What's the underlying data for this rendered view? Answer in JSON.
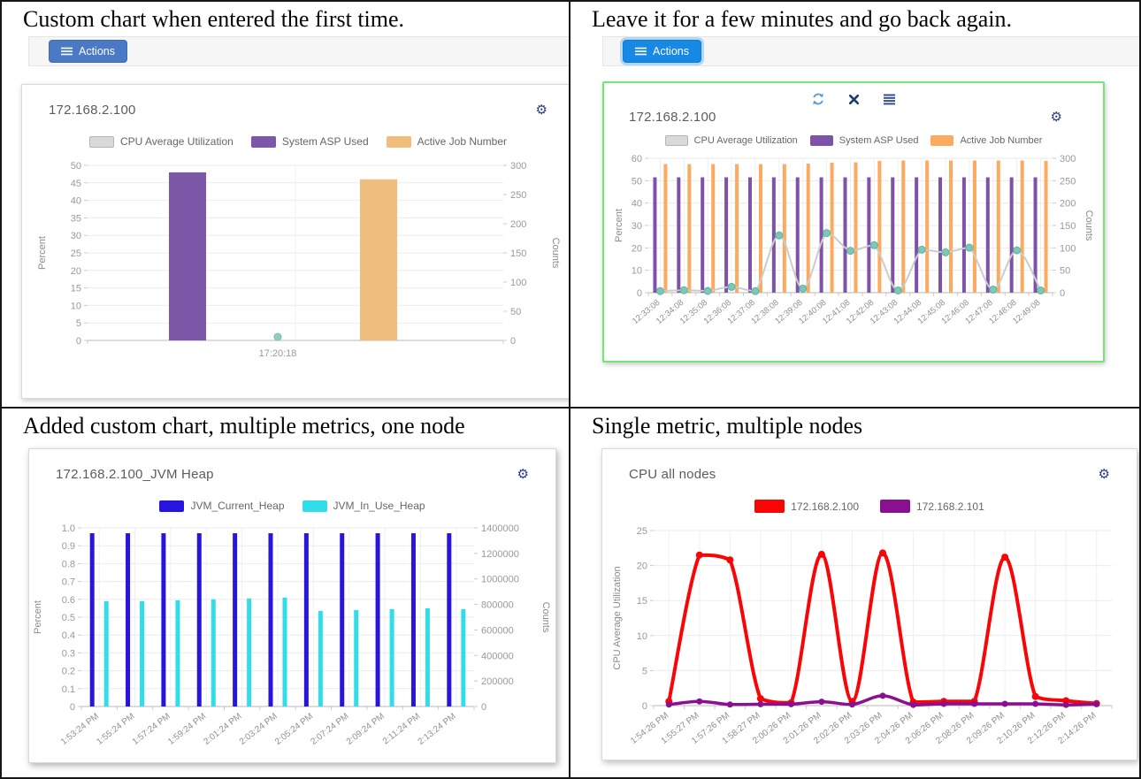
{
  "icons": {
    "gear": "⚙",
    "hamburger": "three-lines",
    "refresh": "circular-arrows",
    "close": "x-cross",
    "list": "stacked-lines"
  },
  "cells": {
    "tl": {
      "caption": "Custom chart when entered the first time.",
      "actions_label": "Actions"
    },
    "tr": {
      "caption": "Leave it for a few minutes and go back again.",
      "actions_label": "Actions"
    },
    "bl": {
      "caption": "Added custom chart, multiple metrics, one node"
    },
    "br": {
      "caption": "Single metric, multiple nodes"
    }
  },
  "chart_data": [
    {
      "panel": "top-left",
      "type": "bar",
      "title": "172.168.2.100",
      "categories": [
        "17:20:18"
      ],
      "y_left": {
        "label": "Percent",
        "min": 0,
        "max": 50,
        "step": 5
      },
      "y_right": {
        "label": "Counts",
        "min": 0,
        "max": 300,
        "step": 50
      },
      "legend": [
        {
          "label": "CPU Average Utilization",
          "color": "#d9d9d9",
          "border": "#b5b5b5"
        },
        {
          "label": "System ASP Used",
          "color": "#7d57a8"
        },
        {
          "label": "Active Job Number",
          "color": "#efbe7d"
        }
      ],
      "series": [
        {
          "name": "CPU Average Utilization",
          "type": "line",
          "axis": "left",
          "color": "#cccccc",
          "point_color": "#93cfc0",
          "point_border": "#74bcaa",
          "point_r": 4,
          "values": [
            1
          ]
        },
        {
          "name": "System ASP Used",
          "type": "bar",
          "axis": "left",
          "color": "#7d57a8",
          "values": [
            48
          ]
        },
        {
          "name": "Active Job Number",
          "type": "bar",
          "axis": "right",
          "color": "#efbe7d",
          "values": [
            276
          ]
        }
      ]
    },
    {
      "panel": "top-right",
      "type": "bar",
      "title": "172.168.2.100",
      "categories": [
        "12:33:08",
        "12:34:08",
        "12:35:08",
        "12:36:08",
        "12:37:08",
        "12:38:08",
        "12:39:08",
        "12:40:08",
        "12:41:08",
        "12:42:08",
        "12:43:08",
        "12:44:08",
        "12:45:08",
        "12:46:08",
        "12:47:08",
        "12:48:08",
        "12:49:08"
      ],
      "y_left": {
        "label": "Percent",
        "min": 0,
        "max": 60,
        "step": 10
      },
      "y_right": {
        "label": "Counts",
        "min": 0,
        "max": 300,
        "step": 50
      },
      "legend": [
        {
          "label": "CPU Average Utilization",
          "color": "#d9d9d9",
          "border": "#b5b5b5"
        },
        {
          "label": "System ASP Used",
          "color": "#7e52a8"
        },
        {
          "label": "Active Job Number",
          "color": "#fbaa5f"
        }
      ],
      "series": [
        {
          "name": "CPU Average Utilization",
          "type": "line",
          "axis": "left",
          "color": "#cccccc",
          "line_width": 2,
          "point_color": "#7cc8b8",
          "point_border": "#60b2a0",
          "point_r": 4,
          "values": [
            0.7,
            1.1,
            0.8,
            2.6,
            0.7,
            25.6,
            1.8,
            26.6,
            18.7,
            21.2,
            1.0,
            19.2,
            18.0,
            20.1,
            1.4,
            18.9,
            1.0
          ]
        },
        {
          "name": "System ASP Used",
          "type": "bar",
          "axis": "left",
          "color": "#7e52a8",
          "values": [
            51.5,
            51.5,
            51.5,
            51.5,
            51.5,
            51.5,
            51.5,
            51.5,
            51.5,
            51.5,
            51.5,
            51.5,
            51.5,
            51.5,
            51.5,
            51.5,
            51.5
          ]
        },
        {
          "name": "Active Job Number",
          "type": "bar",
          "axis": "right",
          "color": "#fbaa5f",
          "values": [
            287,
            287,
            287,
            287,
            287,
            287,
            288,
            290,
            291,
            294,
            295,
            295,
            295,
            295,
            295,
            295,
            294
          ]
        }
      ]
    },
    {
      "panel": "bottom-left",
      "type": "bar",
      "title": "172.168.2.100_JVM Heap",
      "categories": [
        "1:53:24 PM",
        "1:55:24 PM",
        "1:57:24 PM",
        "1:59:24 PM",
        "2:01:24 PM",
        "2:03:24 PM",
        "2:05:24 PM",
        "2:07:24 PM",
        "2:09:24 PM",
        "2:11:24 PM",
        "2:13:24 PM"
      ],
      "y_left": {
        "label": "Percent",
        "min": 0,
        "max": 1,
        "step": 0.1
      },
      "y_right": {
        "label": "Counts",
        "min": 0,
        "max": 1400000,
        "step": 200000
      },
      "legend": [
        {
          "label": "JVM_Current_Heap",
          "color": "#2715dd"
        },
        {
          "label": "JVM_In_Use_Heap",
          "color": "#30dde9"
        }
      ],
      "series": [
        {
          "name": "JVM_Current_Heap",
          "type": "bar",
          "axis": "left",
          "color": "#2715dd",
          "values": [
            0.97,
            0.97,
            0.97,
            0.97,
            0.97,
            0.97,
            0.97,
            0.97,
            0.97,
            0.97,
            0.97
          ]
        },
        {
          "name": "JVM_In_Use_Heap",
          "type": "bar",
          "axis": "left",
          "color": "#30dde9",
          "values": [
            0.59,
            0.59,
            0.595,
            0.6,
            0.605,
            0.61,
            0.535,
            0.54,
            0.545,
            0.55,
            0.545
          ]
        }
      ]
    },
    {
      "panel": "bottom-right",
      "type": "line",
      "title": "CPU all nodes",
      "categories": [
        "1:54:26 PM",
        "1:55:27 PM",
        "1:57:26 PM",
        "1:58:27 PM",
        "2:00:26 PM",
        "2:01:26 PM",
        "2:02:26 PM",
        "2:03:26 PM",
        "2:04:26 PM",
        "2:06:26 PM",
        "2:08:26 PM",
        "2:09:26 PM",
        "2:10:26 PM",
        "2:12:26 PM",
        "2:14:26 PM"
      ],
      "y_left": {
        "label": "CPU Average Utilization",
        "min": 0,
        "max": 25,
        "step": 5
      },
      "y_right": null,
      "legend": [
        {
          "label": "172.168.2.100",
          "color": "#fa0506"
        },
        {
          "label": "172.168.2.101",
          "color": "#8a1092"
        }
      ],
      "series": [
        {
          "name": "172.168.2.100",
          "type": "line",
          "axis": "left",
          "color": "#fa0506",
          "line_width": 4,
          "point_r": 4,
          "values": [
            0.6,
            21.5,
            20.8,
            1.0,
            0.4,
            21.6,
            0.6,
            21.8,
            0.5,
            0.6,
            0.6,
            21.2,
            1.3,
            0.7,
            0.3
          ]
        },
        {
          "name": "172.168.2.101",
          "type": "line",
          "axis": "left",
          "color": "#8a1092",
          "line_width": 3.5,
          "point_r": 3.5,
          "values": [
            0.15,
            0.6,
            0.15,
            0.2,
            0.2,
            0.55,
            0.15,
            1.4,
            0.1,
            0.25,
            0.25,
            0.25,
            0.25,
            0.1,
            0.2
          ]
        }
      ]
    }
  ]
}
